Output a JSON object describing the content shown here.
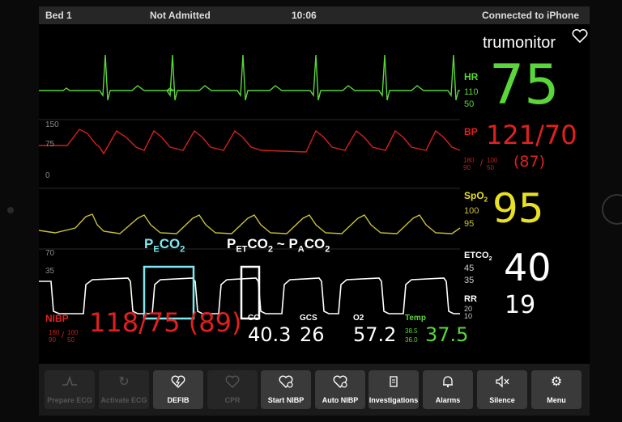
{
  "status_bar": {
    "bed": "Bed 1",
    "admission": "Not Admitted",
    "time": "10:06",
    "connection": "Connected to iPhone"
  },
  "brand": {
    "name": "trumonitor",
    "icon": "heart-outline-icon"
  },
  "hr": {
    "label": "HR",
    "high": "110",
    "low": "50",
    "value": "75",
    "color": "#5bd63a"
  },
  "bp": {
    "label": "BP",
    "value": "121/70",
    "mean": "(87)",
    "limits_sys_high": "180",
    "limits_sys_low": "90",
    "limits_dia_high": "100",
    "limits_dia_low": "50",
    "scale_top": "150",
    "scale_mid": "75",
    "scale_zero": "0",
    "color": "#e02020"
  },
  "spo2": {
    "label": "SpO",
    "label_sub": "2",
    "high": "100",
    "low": "95",
    "value": "95",
    "color": "#e8e024"
  },
  "etco2": {
    "label": "ETCO",
    "label_sub": "2",
    "high": "45",
    "low": "35",
    "value": "40",
    "scale_top": "70",
    "scale_mid": "35",
    "color": "#ffffff"
  },
  "rr": {
    "label": "RR",
    "high": "20",
    "low": "10",
    "value": "19"
  },
  "nibp": {
    "label": "NIBP",
    "value": "118/75",
    "mean": "(89)",
    "limits_sys_high": "180",
    "limits_sys_low": "90",
    "limits_dia_high": "100",
    "limits_dia_low": "50",
    "color": "#e02020"
  },
  "co": {
    "label": "CO",
    "value": "40.3"
  },
  "gcs": {
    "label": "GCS",
    "value": "26"
  },
  "o2": {
    "label": "O2",
    "value": "57.2"
  },
  "temp": {
    "label": "Temp",
    "high": "38.5",
    "low": "36.0",
    "value": "37.5",
    "color": "#5bd63a"
  },
  "annotations": {
    "pe": {
      "base": "P",
      "sub": "E",
      "rest": "CO",
      "sub2": "2",
      "color": "#7ee8f0"
    },
    "pet": {
      "base": "P",
      "sub": "ET",
      "rest": "CO",
      "sub2": "2",
      "tilde": "~",
      "base2": "P",
      "sub3": "A",
      "rest2": "CO",
      "sub4": "2",
      "color": "#ffffff"
    }
  },
  "toolbar": [
    {
      "label": "Prepare ECG",
      "icon": "ecg-wave-icon",
      "enabled": false
    },
    {
      "label": "Activate ECG",
      "icon": "refresh-icon",
      "enabled": false
    },
    {
      "label": "DEFIB",
      "icon": "defib-icon",
      "enabled": true
    },
    {
      "label": "CPR",
      "icon": "heart-icon",
      "enabled": false
    },
    {
      "label": "Start NIBP",
      "icon": "heart-gauge-icon",
      "enabled": true
    },
    {
      "label": "Auto NIBP",
      "icon": "heart-gauge-icon",
      "enabled": true
    },
    {
      "label": "Investigations",
      "icon": "clipboard-icon",
      "enabled": true
    },
    {
      "label": "Alarms",
      "icon": "bell-icon",
      "enabled": true
    },
    {
      "label": "Silence",
      "icon": "speaker-mute-icon",
      "enabled": true
    },
    {
      "label": "Menu",
      "icon": "gear-icon",
      "enabled": true
    }
  ]
}
